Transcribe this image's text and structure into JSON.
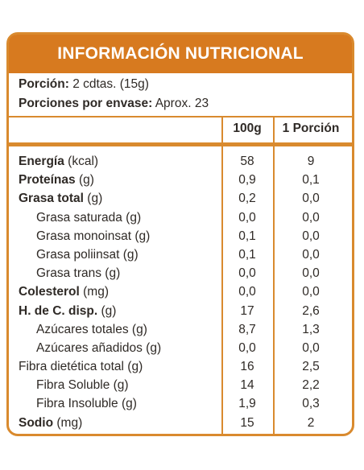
{
  "title": "INFORMACIÓN NUTRICIONAL",
  "serving": {
    "portion_label": "Porción:",
    "portion_value": "2 cdtas. (15g)",
    "per_pack_label": "Porciones por envase:",
    "per_pack_value": "Aprox. 23"
  },
  "columns": [
    "100g",
    "1 Porción"
  ],
  "rows": [
    {
      "name": "Energía",
      "unit": "(kcal)",
      "bold": true,
      "indent": false,
      "v100": "58",
      "vportion": "9"
    },
    {
      "name": "Proteínas",
      "unit": "(g)",
      "bold": true,
      "indent": false,
      "v100": "0,9",
      "vportion": "0,1"
    },
    {
      "name": "Grasa total",
      "unit": "(g)",
      "bold": true,
      "indent": false,
      "v100": "0,2",
      "vportion": "0,0"
    },
    {
      "name": "Grasa saturada",
      "unit": "(g)",
      "bold": false,
      "indent": true,
      "v100": "0,0",
      "vportion": "0,0"
    },
    {
      "name": "Grasa monoinsat",
      "unit": "(g)",
      "bold": false,
      "indent": true,
      "v100": "0,1",
      "vportion": "0,0"
    },
    {
      "name": "Grasa poliinsat",
      "unit": "(g)",
      "bold": false,
      "indent": true,
      "v100": "0,1",
      "vportion": "0,0"
    },
    {
      "name": "Grasa trans",
      "unit": "(g)",
      "bold": false,
      "indent": true,
      "v100": "0,0",
      "vportion": "0,0"
    },
    {
      "name": "Colesterol",
      "unit": "(mg)",
      "bold": true,
      "indent": false,
      "v100": "0,0",
      "vportion": "0,0"
    },
    {
      "name": "H. de C. disp.",
      "unit": "(g)",
      "bold": true,
      "indent": false,
      "v100": "17",
      "vportion": "2,6"
    },
    {
      "name": "Azúcares totales",
      "unit": "(g)",
      "bold": false,
      "indent": true,
      "v100": "8,7",
      "vportion": "1,3"
    },
    {
      "name": "Azúcares añadidos",
      "unit": "(g)",
      "bold": false,
      "indent": true,
      "v100": "0,0",
      "vportion": "0,0"
    },
    {
      "name": "Fibra dietética total",
      "unit": "(g)",
      "bold": false,
      "indent": false,
      "v100": "16",
      "vportion": "2,5"
    },
    {
      "name": "Fibra Soluble",
      "unit": "(g)",
      "bold": false,
      "indent": true,
      "v100": "14",
      "vportion": "2,2"
    },
    {
      "name": "Fibra Insoluble",
      "unit": "(g)",
      "bold": false,
      "indent": true,
      "v100": "1,9",
      "vportion": "0,3"
    },
    {
      "name": "Sodio",
      "unit": "(mg)",
      "bold": true,
      "indent": false,
      "v100": "15",
      "vportion": "2"
    }
  ],
  "colors": {
    "accent": "#d77a1f",
    "border": "#d98a2e",
    "text": "#2f2a26"
  }
}
